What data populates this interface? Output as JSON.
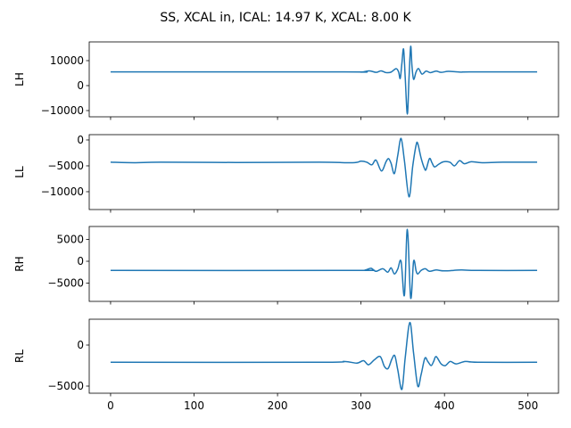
{
  "chart_data": {
    "type": "line",
    "title": "SS, XCAL in, ICAL: 14.97 K, XCAL: 8.00 K",
    "xlim": [
      -25.6,
      536.6
    ],
    "xticks": [
      0,
      100,
      200,
      300,
      400,
      500
    ],
    "xtick_labels": [
      "0",
      "100",
      "200",
      "300",
      "400",
      "500"
    ],
    "line_color": "#1f77b4",
    "grid": false,
    "panels": [
      {
        "ylabel": "LH",
        "ylim": [
          -12500,
          17500
        ],
        "yticks": [
          -10000,
          0,
          10000
        ],
        "ytick_labels": [
          "−10000",
          "0",
          "10000"
        ],
        "points": [
          [
            0,
            5500
          ],
          [
            280,
            5500
          ],
          [
            300,
            5400
          ],
          [
            310,
            5900
          ],
          [
            318,
            5300
          ],
          [
            324,
            5900
          ],
          [
            330,
            5200
          ],
          [
            336,
            5400
          ],
          [
            342,
            6800
          ],
          [
            345,
            5500
          ],
          [
            347,
            2900
          ],
          [
            349,
            9000
          ],
          [
            351,
            14600
          ],
          [
            353,
            3000
          ],
          [
            355.5,
            -11400
          ],
          [
            357.5,
            3000
          ],
          [
            359.5,
            15700
          ],
          [
            361,
            8000
          ],
          [
            363,
            2500
          ],
          [
            366,
            5500
          ],
          [
            369,
            6800
          ],
          [
            373,
            4600
          ],
          [
            378,
            5800
          ],
          [
            383,
            5200
          ],
          [
            390,
            5800
          ],
          [
            396,
            5300
          ],
          [
            405,
            5700
          ],
          [
            420,
            5400
          ],
          [
            430,
            5500
          ],
          [
            511,
            5500
          ]
        ]
      },
      {
        "ylabel": "LL",
        "ylim": [
          -13450,
          1030
        ],
        "yticks": [
          -10000,
          -5000,
          0
        ],
        "ytick_labels": [
          "−10000",
          "−5000",
          "0"
        ],
        "points": [
          [
            0,
            -4300
          ],
          [
            30,
            -4400
          ],
          [
            60,
            -4300
          ],
          [
            150,
            -4350
          ],
          [
            250,
            -4300
          ],
          [
            290,
            -4400
          ],
          [
            300,
            -4100
          ],
          [
            307,
            -4300
          ],
          [
            313,
            -4800
          ],
          [
            318,
            -3900
          ],
          [
            324.5,
            -6000
          ],
          [
            330,
            -4200
          ],
          [
            333,
            -3600
          ],
          [
            336,
            -4500
          ],
          [
            340,
            -6500
          ],
          [
            344,
            -3000
          ],
          [
            348,
            300
          ],
          [
            352,
            -4000
          ],
          [
            357.5,
            -11000
          ],
          [
            362,
            -5000
          ],
          [
            366,
            -1000
          ],
          [
            368,
            -700
          ],
          [
            372,
            -3500
          ],
          [
            376,
            -5500
          ],
          [
            378,
            -5700
          ],
          [
            382,
            -3600
          ],
          [
            385,
            -4400
          ],
          [
            388,
            -5200
          ],
          [
            393,
            -4700
          ],
          [
            399,
            -4200
          ],
          [
            406.5,
            -4300
          ],
          [
            412,
            -5000
          ],
          [
            418,
            -4000
          ],
          [
            424,
            -4600
          ],
          [
            432,
            -4200
          ],
          [
            445,
            -4400
          ],
          [
            470,
            -4300
          ],
          [
            511,
            -4300
          ]
        ]
      },
      {
        "ylabel": "RH",
        "ylim": [
          -9180,
          7960
        ],
        "yticks": [
          -5000,
          0,
          5000
        ],
        "ytick_labels": [
          "−5000",
          "0",
          "5000"
        ],
        "points": [
          [
            0,
            -2100
          ],
          [
            290,
            -2100
          ],
          [
            305,
            -2000
          ],
          [
            312,
            -1600
          ],
          [
            318,
            -2300
          ],
          [
            326,
            -1700
          ],
          [
            332,
            -2500
          ],
          [
            336,
            -1500
          ],
          [
            340,
            -2900
          ],
          [
            344,
            -1800
          ],
          [
            348,
            0
          ],
          [
            352,
            -7800
          ],
          [
            355.5,
            7300
          ],
          [
            359.5,
            -8400
          ],
          [
            363,
            0
          ],
          [
            366,
            -2200
          ],
          [
            368,
            -2900
          ],
          [
            372,
            -2100
          ],
          [
            377,
            -1700
          ],
          [
            382,
            -2300
          ],
          [
            390,
            -2000
          ],
          [
            400,
            -2200
          ],
          [
            420,
            -2000
          ],
          [
            440,
            -2100
          ],
          [
            511,
            -2100
          ]
        ]
      },
      {
        "ylabel": "RL",
        "ylim": [
          -5870,
          3150
        ],
        "yticks": [
          -5000,
          0
        ],
        "ytick_labels": [
          "−5000",
          "0"
        ],
        "points": [
          [
            0,
            -2100
          ],
          [
            250,
            -2100
          ],
          [
            280,
            -2000
          ],
          [
            295,
            -2200
          ],
          [
            303,
            -1900
          ],
          [
            309,
            -2400
          ],
          [
            316,
            -1800
          ],
          [
            323,
            -1400
          ],
          [
            328,
            -2600
          ],
          [
            332.5,
            -2850
          ],
          [
            337,
            -1700
          ],
          [
            340.5,
            -1300
          ],
          [
            344,
            -3000
          ],
          [
            349,
            -5400
          ],
          [
            353,
            -1500
          ],
          [
            358.5,
            2750
          ],
          [
            363,
            -1000
          ],
          [
            368,
            -5000
          ],
          [
            372,
            -3600
          ],
          [
            376.5,
            -1600
          ],
          [
            380,
            -2000
          ],
          [
            384,
            -2500
          ],
          [
            387,
            -2000
          ],
          [
            390,
            -1400
          ],
          [
            396,
            -2300
          ],
          [
            401,
            -2500
          ],
          [
            407,
            -2000
          ],
          [
            414,
            -2300
          ],
          [
            425,
            -2000
          ],
          [
            440,
            -2100
          ],
          [
            511,
            -2100
          ]
        ]
      }
    ]
  }
}
